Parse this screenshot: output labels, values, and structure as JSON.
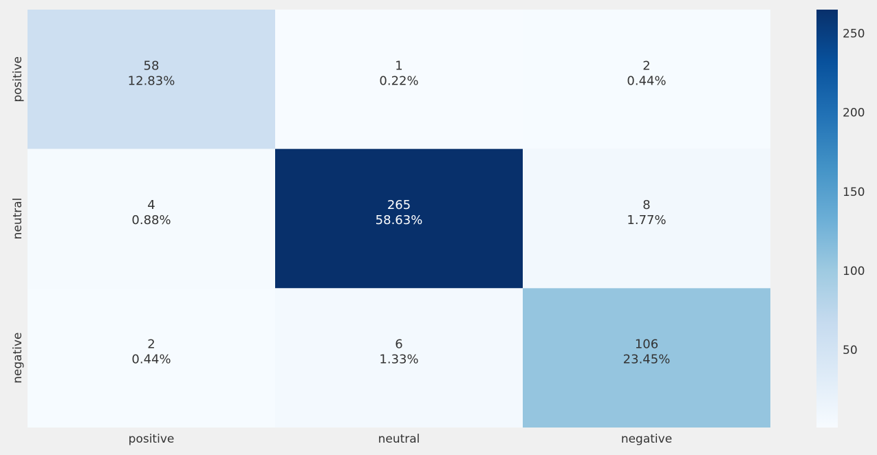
{
  "chart_data": {
    "type": "heatmap",
    "title": "",
    "xlabel": "",
    "ylabel": "",
    "x_labels": [
      "positive",
      "neutral",
      "negative"
    ],
    "y_labels": [
      "positive",
      "neutral",
      "negative"
    ],
    "values": [
      [
        58,
        1,
        2
      ],
      [
        4,
        265,
        8
      ],
      [
        2,
        6,
        106
      ]
    ],
    "cell_labels": [
      [
        [
          "58",
          "12.83%"
        ],
        [
          "1",
          "0.22%"
        ],
        [
          "2",
          "0.44%"
        ]
      ],
      [
        [
          "4",
          "0.88%"
        ],
        [
          "265",
          "58.63%"
        ],
        [
          "8",
          "1.77%"
        ]
      ],
      [
        [
          "2",
          "0.44%"
        ],
        [
          "6",
          "1.33%"
        ],
        [
          "106",
          "23.45%"
        ]
      ]
    ],
    "colorbar": {
      "min": 1,
      "max": 265,
      "ticks": [
        50,
        100,
        150,
        200,
        250
      ],
      "colormap": "Blues"
    },
    "colors": {
      "background": "#f0f0f0",
      "text_dark": "#333333",
      "text_light": "#ffffff"
    }
  }
}
